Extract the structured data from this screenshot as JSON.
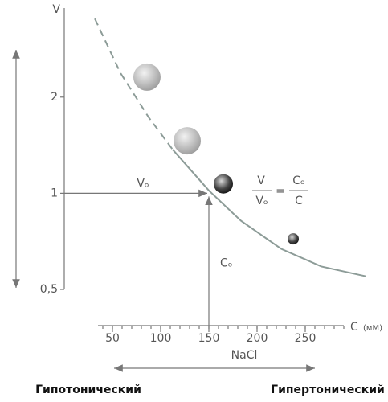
{
  "chart_data": {
    "type": "line",
    "y_label": "V",
    "x_label": "C",
    "x_unit": "(мМ)",
    "log_y": true,
    "xlim": [
      35,
      290
    ],
    "ylim": [
      0.5,
      3.8
    ],
    "xticks": [
      50,
      100,
      150,
      200,
      250
    ],
    "x_minor_step": 10,
    "yticks": [
      {
        "value": 0.5,
        "label": "0,5"
      },
      1,
      2
    ],
    "color": "#8d9c98",
    "series": [
      {
        "style": "dashed",
        "x": [
          31.7,
          58.3,
          87.5,
          112.5
        ],
        "values": [
          3.52,
          2.38,
          1.73,
          1.37
        ]
      },
      {
        "style": "solid",
        "x": [
          112.5,
          150,
          183.3,
          225,
          266.7,
          312.5
        ],
        "values": [
          1.37,
          1.02,
          0.82,
          0.67,
          0.59,
          0.55
        ]
      }
    ],
    "cells": {
      "x": [
        85.8,
        127.5,
        165,
        237.5
      ],
      "values": [
        2.31,
        1.46,
        1.07,
        0.72
      ]
    },
    "reference": {
      "x": 150,
      "y": 1,
      "x_label": "Cₒ",
      "y_label": "Vₒ"
    },
    "formula": {
      "left_num": "V",
      "left_den": "Vₒ",
      "equals": "=",
      "right_num": "Cₒ",
      "right_den": "C"
    },
    "nacl_label": "NaCl",
    "left_label": "Гипотонический",
    "right_label": "Гипертонический"
  }
}
